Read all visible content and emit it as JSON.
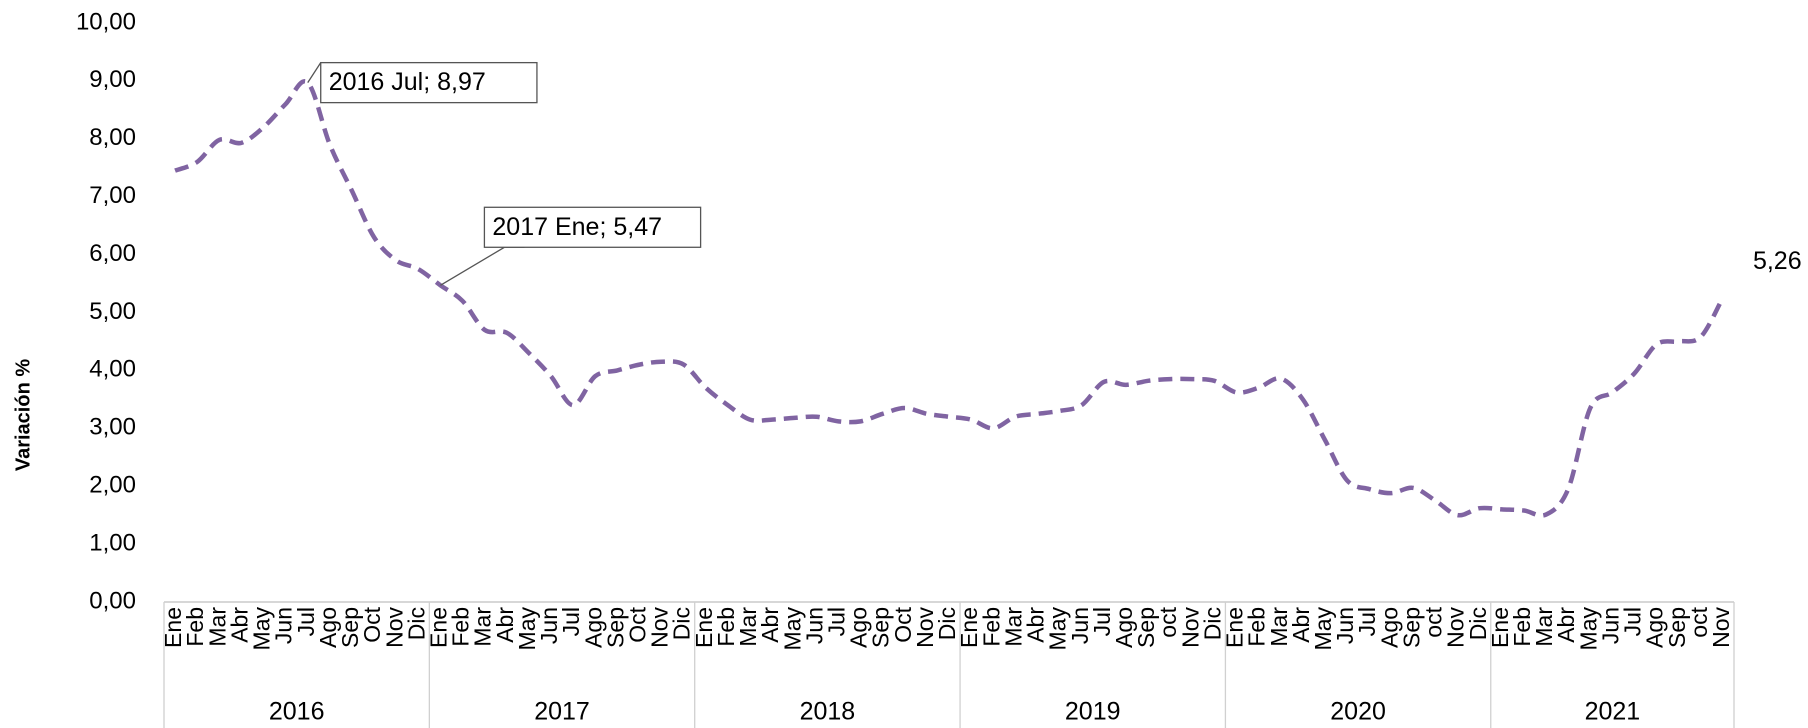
{
  "chart_data": {
    "type": "line",
    "y_label": "Variación %",
    "ylim": [
      0,
      10
    ],
    "yticks": [
      {
        "value": 0,
        "label": "0,00"
      },
      {
        "value": 1,
        "label": "1,00"
      },
      {
        "value": 2,
        "label": "2,00"
      },
      {
        "value": 3,
        "label": "3,00"
      },
      {
        "value": 4,
        "label": "4,00"
      },
      {
        "value": 5,
        "label": "5,00"
      },
      {
        "value": 6,
        "label": "6,00"
      },
      {
        "value": 7,
        "label": "7,00"
      },
      {
        "value": 8,
        "label": "8,00"
      },
      {
        "value": 9,
        "label": "9,00"
      },
      {
        "value": 10,
        "label": "10,00"
      }
    ],
    "groups": [
      {
        "name": "2016",
        "categories": [
          "Ene",
          "Feb",
          "Mar",
          "Abr",
          "May",
          "Jun",
          "Jul",
          "Ago",
          "Sep",
          "Oct",
          "Nov",
          "Dic"
        ]
      },
      {
        "name": "2017",
        "categories": [
          "Ene",
          "Feb",
          "Mar",
          "Abr",
          "May",
          "Jun",
          "Jul",
          "Ago",
          "Sep",
          "Oct",
          "Nov",
          "Dic"
        ]
      },
      {
        "name": "2018",
        "categories": [
          "Ene",
          "Feb",
          "Mar",
          "Abr",
          "May",
          "Jun",
          "Jul",
          "Ago",
          "Sep",
          "Oct",
          "Nov",
          "Dic"
        ]
      },
      {
        "name": "2019",
        "categories": [
          "Ene",
          "Feb",
          "Mar",
          "Abr",
          "May",
          "Jun",
          "Jul",
          "Ago",
          "Sep",
          "oct",
          "Nov",
          "Dic"
        ]
      },
      {
        "name": "2020",
        "categories": [
          "Ene",
          "Feb",
          "Mar",
          "Abr",
          "May",
          "Jun",
          "Jul",
          "Ago",
          "Sep",
          "oct",
          "Nov",
          "Dic"
        ]
      },
      {
        "name": "2021",
        "categories": [
          "Ene",
          "Feb",
          "Mar",
          "Abr",
          "May",
          "Jun",
          "Jul",
          "Ago",
          "Sep",
          "oct",
          "Nov"
        ]
      }
    ],
    "color": "#8064a2",
    "line_style": "dashed",
    "values": [
      7.45,
      7.6,
      7.98,
      7.93,
      8.2,
      8.6,
      8.97,
      7.9,
      7.1,
      6.3,
      5.9,
      5.75,
      5.47,
      5.2,
      4.7,
      4.65,
      4.3,
      3.9,
      3.4,
      3.9,
      4.0,
      4.1,
      4.15,
      4.1,
      3.7,
      3.4,
      3.15,
      3.15,
      3.18,
      3.2,
      3.12,
      3.12,
      3.25,
      3.35,
      3.25,
      3.2,
      3.15,
      3.0,
      3.2,
      3.25,
      3.3,
      3.4,
      3.8,
      3.75,
      3.82,
      3.85,
      3.85,
      3.82,
      3.62,
      3.7,
      3.86,
      3.5,
      2.8,
      2.1,
      1.95,
      1.88,
      1.97,
      1.75,
      1.5,
      1.62,
      1.6,
      1.58,
      1.51,
      1.95,
      3.35,
      3.62,
      3.95,
      4.45,
      4.5,
      4.58,
      5.26
    ],
    "value_labels": [
      null,
      null,
      null,
      null,
      null,
      null,
      "2016 Jul; 8,97",
      null,
      null,
      null,
      null,
      null,
      "2017 Ene; 5,47",
      null,
      null,
      null,
      null,
      null,
      null,
      null,
      null,
      null,
      null,
      null,
      null,
      null,
      null,
      null,
      null,
      null,
      null,
      null,
      null,
      null,
      null,
      null,
      null,
      null,
      null,
      null,
      null,
      null,
      null,
      null,
      null,
      null,
      null,
      null,
      null,
      null,
      null,
      null,
      null,
      null,
      null,
      null,
      null,
      null,
      null,
      null,
      null,
      null,
      null,
      null,
      null,
      null,
      null,
      null,
      null,
      null,
      "5,26"
    ]
  }
}
